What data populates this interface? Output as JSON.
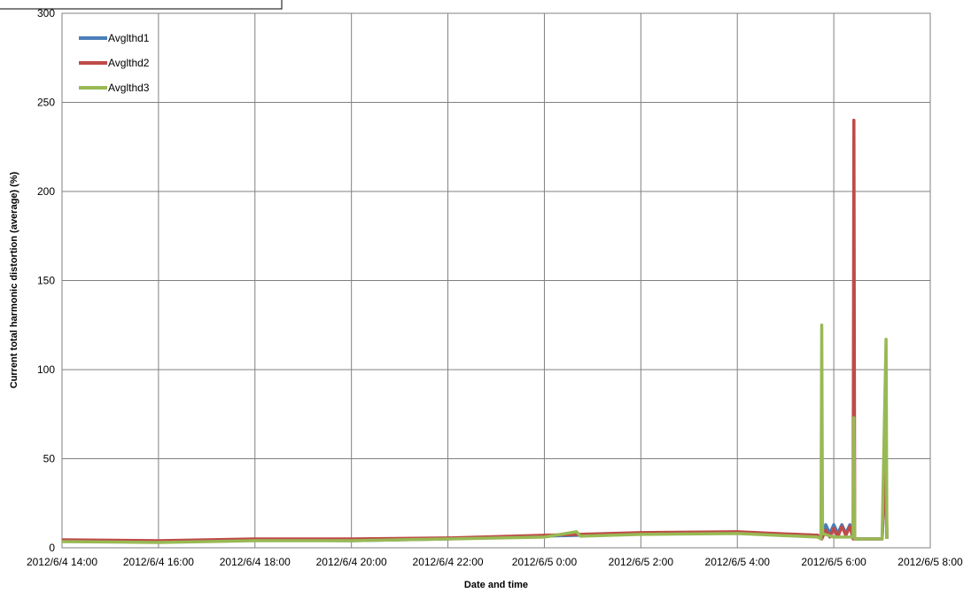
{
  "chart_data": {
    "type": "line",
    "title": "",
    "xlabel": "Date and time",
    "ylabel": "Current total harmonic distortion (average) (%)",
    "xlim": [
      "2012/6/4 14:00",
      "2012/6/5 8:00"
    ],
    "ylim": [
      0,
      300
    ],
    "y_ticks": [
      0,
      50,
      100,
      150,
      200,
      250,
      300
    ],
    "y_tick_labels": [
      "0",
      "50",
      "100",
      "150",
      "200",
      "250",
      "300"
    ],
    "x_tick_labels": [
      "2012/6/4 14:00",
      "2012/6/4 16:00",
      "2012/6/4 18:00",
      "2012/6/4 20:00",
      "2012/6/4 22:00",
      "2012/6/5 0:00",
      "2012/6/5 2:00",
      "2012/6/5 4:00",
      "2012/6/5 6:00",
      "2012/6/5 8:00"
    ],
    "grid": true,
    "legend_position": "top-left",
    "series": [
      {
        "name": "Avglthd1",
        "color": "#4a7ebb",
        "points": [
          [
            "2012/6/4 14:00",
            4
          ],
          [
            "2012/6/4 16:00",
            3.5
          ],
          [
            "2012/6/4 18:00",
            4.5
          ],
          [
            "2012/6/4 20:00",
            4
          ],
          [
            "2012/6/4 22:00",
            5
          ],
          [
            "2012/6/5 0:00",
            6.5
          ],
          [
            "2012/6/5 2:00",
            8
          ],
          [
            "2012/6/5 4:00",
            8.5
          ],
          [
            "2012/6/5 5:40",
            7
          ],
          [
            "2012/6/5 5:45",
            5
          ],
          [
            "2012/6/5 5:50",
            13
          ],
          [
            "2012/6/5 5:55",
            8
          ],
          [
            "2012/6/5 6:00",
            13
          ],
          [
            "2012/6/5 6:05",
            8
          ],
          [
            "2012/6/5 6:10",
            13
          ],
          [
            "2012/6/5 6:15",
            8
          ],
          [
            "2012/6/5 6:20",
            13
          ],
          [
            "2012/6/5 6:25",
            5
          ],
          [
            "2012/6/5 6:30",
            5
          ],
          [
            "2012/6/5 7:00",
            5
          ],
          [
            "2012/6/5 7:05",
            45
          ],
          [
            "2012/6/5 7:06",
            5
          ]
        ]
      },
      {
        "name": "Avglthd2",
        "color": "#be4b48",
        "points": [
          [
            "2012/6/4 14:00",
            4.5
          ],
          [
            "2012/6/4 16:00",
            4
          ],
          [
            "2012/6/4 18:00",
            5
          ],
          [
            "2012/6/4 20:00",
            5
          ],
          [
            "2012/6/4 22:00",
            5.5
          ],
          [
            "2012/6/5 0:00",
            7
          ],
          [
            "2012/6/5 2:00",
            8.5
          ],
          [
            "2012/6/5 4:00",
            9
          ],
          [
            "2012/6/5 5:40",
            7
          ],
          [
            "2012/6/5 5:45",
            5
          ],
          [
            "2012/6/5 5:50",
            10
          ],
          [
            "2012/6/5 5:55",
            6
          ],
          [
            "2012/6/5 6:00",
            11
          ],
          [
            "2012/6/5 6:05",
            6
          ],
          [
            "2012/6/5 6:10",
            12
          ],
          [
            "2012/6/5 6:15",
            7
          ],
          [
            "2012/6/5 6:20",
            12
          ],
          [
            "2012/6/5 6:24",
            5
          ],
          [
            "2012/6/5 6:25",
            240
          ],
          [
            "2012/6/5 6:26",
            5
          ],
          [
            "2012/6/5 7:00",
            5
          ],
          [
            "2012/6/5 7:05",
            50
          ],
          [
            "2012/6/5 7:06",
            5
          ]
        ]
      },
      {
        "name": "Avglthd3",
        "color": "#98b954",
        "points": [
          [
            "2012/6/4 14:00",
            3.5
          ],
          [
            "2012/6/4 16:00",
            3
          ],
          [
            "2012/6/4 18:00",
            4
          ],
          [
            "2012/6/4 20:00",
            4
          ],
          [
            "2012/6/4 22:00",
            5
          ],
          [
            "2012/6/5 0:00",
            6
          ],
          [
            "2012/6/5 0:40",
            9
          ],
          [
            "2012/6/5 0:45",
            6.5
          ],
          [
            "2012/6/5 2:00",
            7.5
          ],
          [
            "2012/6/5 4:00",
            8
          ],
          [
            "2012/6/5 5:40",
            6
          ],
          [
            "2012/6/5 5:44",
            5
          ],
          [
            "2012/6/5 5:45",
            125
          ],
          [
            "2012/6/5 5:46",
            8
          ],
          [
            "2012/6/5 6:00",
            6
          ],
          [
            "2012/6/5 6:24",
            6
          ],
          [
            "2012/6/5 6:25",
            73
          ],
          [
            "2012/6/5 6:26",
            5
          ],
          [
            "2012/6/5 7:00",
            5
          ],
          [
            "2012/6/5 7:05",
            117
          ],
          [
            "2012/6/5 7:06",
            5
          ]
        ]
      }
    ]
  }
}
